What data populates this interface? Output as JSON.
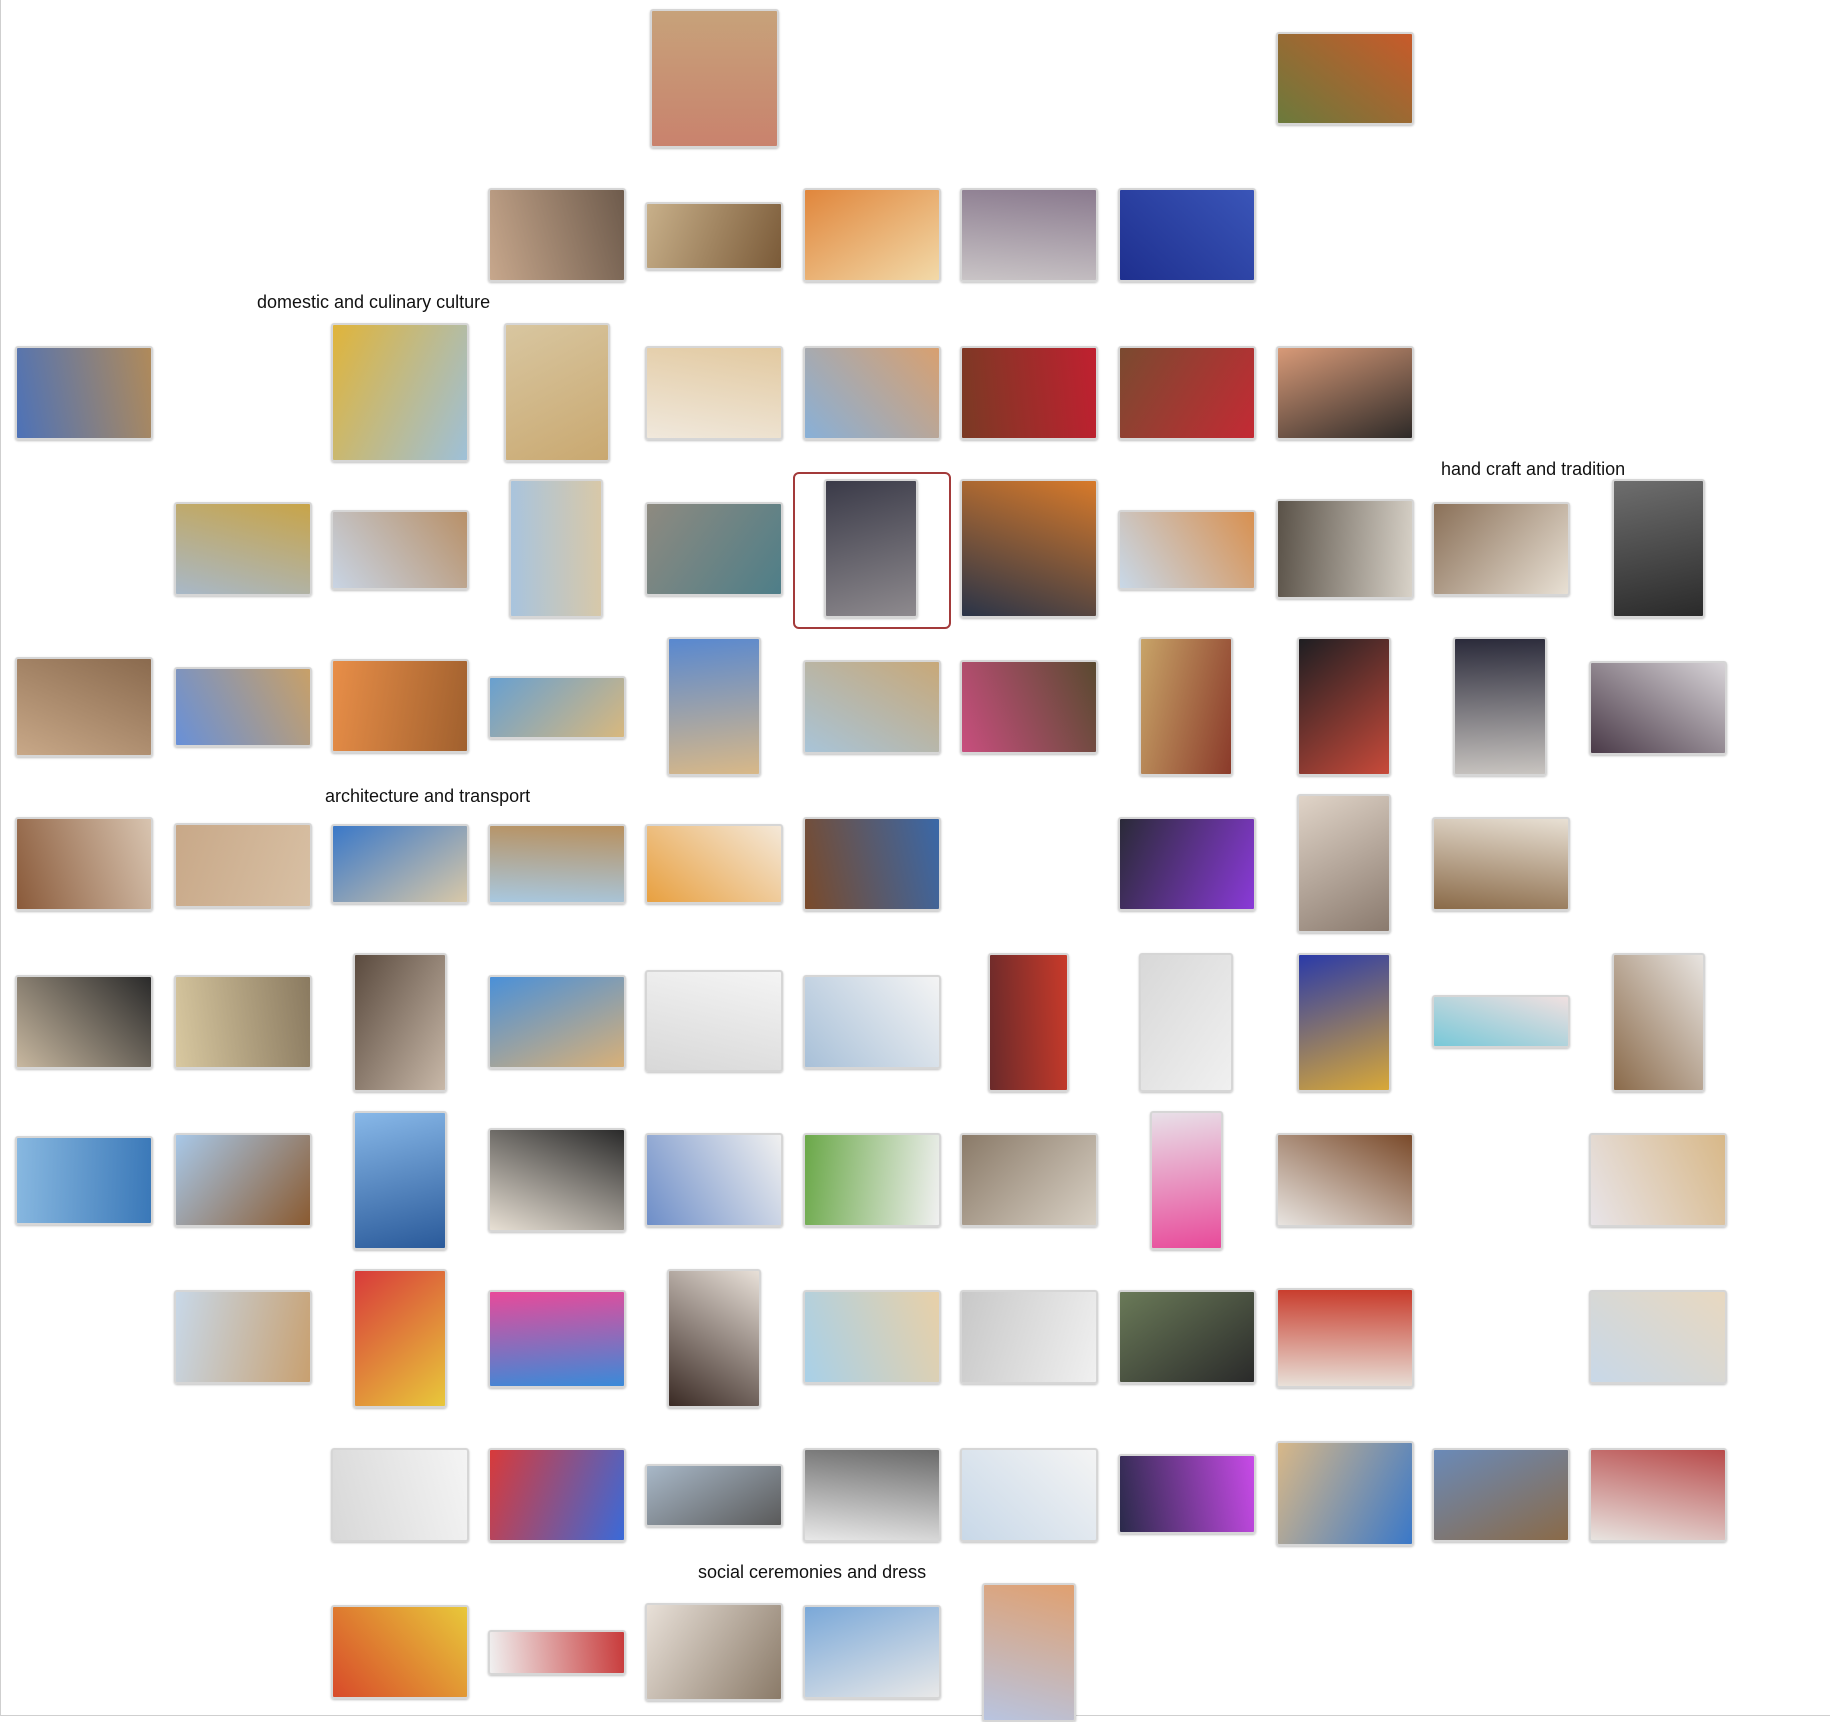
{
  "labels": [
    "domestic and culinary culture",
    "hand craft and tradition",
    "architecture and transport",
    "social ceremonies and dress"
  ],
  "selected_index": 38,
  "thumbnails": [
    {
      "name": "woven-palm-mat",
      "c1": "#c9826d",
      "c2": "#c7a27a"
    },
    {
      "name": "date-palm-harvest",
      "c1": "#6b7a3c",
      "c2": "#c85a2a"
    },
    {
      "name": "hands-oyster",
      "c1": "#c7a78c",
      "c2": "#6e5b4c"
    },
    {
      "name": "camel-race-crowd",
      "c1": "#c8b08a",
      "c2": "#7a5a38"
    },
    {
      "name": "tea-and-bread",
      "c1": "#e0863c",
      "c2": "#f2d9a8"
    },
    {
      "name": "braided-rope",
      "c1": "#c9c4c6",
      "c2": "#8a7a8e"
    },
    {
      "name": "henna-hands-blue",
      "c1": "#1e2f8e",
      "c2": "#3a55b8"
    },
    {
      "name": "camels-sky",
      "c1": "#4d72b8",
      "c2": "#b08a5a"
    },
    {
      "name": "saffron-rice",
      "c1": "#e0b43a",
      "c2": "#9ec0d8"
    },
    {
      "name": "hummus-plate",
      "c1": "#d8c6a0",
      "c2": "#c9a870"
    },
    {
      "name": "child-with-falcon",
      "c1": "#f0e8dc",
      "c2": "#e2c9a0"
    },
    {
      "name": "falcon-desert",
      "c1": "#88b0d8",
      "c2": "#d8a070"
    },
    {
      "name": "net-weaving-red",
      "c1": "#7a3a24",
      "c2": "#c02030"
    },
    {
      "name": "net-weaving-hands",
      "c1": "#7a4a30",
      "c2": "#c42a34"
    },
    {
      "name": "women-weaving",
      "c1": "#d89a78",
      "c2": "#2e2a28"
    },
    {
      "name": "mountain-fort",
      "c1": "#a8b8c8",
      "c2": "#c8a448"
    },
    {
      "name": "stone-tomb",
      "c1": "#c8d4e4",
      "c2": "#b89068"
    },
    {
      "name": "white-tower",
      "c1": "#a8c4de",
      "c2": "#d8c8a8"
    },
    {
      "name": "woven-baskets",
      "c1": "#8e8a80",
      "c2": "#4e7e88"
    },
    {
      "name": "coffee-dallah",
      "c1": "#3a3a48",
      "c2": "#8e8a8e"
    },
    {
      "name": "bride-gold-mask",
      "c1": "#2a3448",
      "c2": "#d87a2a"
    },
    {
      "name": "falconer-dunes",
      "c1": "#c8d8e8",
      "c2": "#d89050"
    },
    {
      "name": "loom-weaving",
      "c1": "#5a5248",
      "c2": "#d8d2c8"
    },
    {
      "name": "old-man-basket",
      "c1": "#8a7058",
      "c2": "#e8e0d4"
    },
    {
      "name": "woman-black-white",
      "c1": "#6e6e6e",
      "c2": "#2a2a2a"
    },
    {
      "name": "arched-door",
      "c1": "#c8a888",
      "c2": "#8a6a4e"
    },
    {
      "name": "fort-gate",
      "c1": "#6890d8",
      "c2": "#c8a068"
    },
    {
      "name": "fort-sunset",
      "c1": "#e88e48",
      "c2": "#a0602e"
    },
    {
      "name": "fort-sea",
      "c1": "#68a0d0",
      "c2": "#d8b87e"
    },
    {
      "name": "tall-fort",
      "c1": "#5888d0",
      "c2": "#d8b888"
    },
    {
      "name": "mud-house",
      "c1": "#a8c4d8",
      "c2": "#c8a878"
    },
    {
      "name": "colorful-baskets",
      "c1": "#c84e7e",
      "c2": "#5a4a30"
    },
    {
      "name": "musician-oud",
      "c1": "#c8a468",
      "c2": "#8a3a2a"
    },
    {
      "name": "dark-weaving",
      "c1": "#1e1e22",
      "c2": "#c84a3a"
    },
    {
      "name": "woman-weaving-rope",
      "c1": "#2a2a3a",
      "c2": "#c8c4c0"
    },
    {
      "name": "woman-purple-weaving",
      "c1": "#4a3a48",
      "c2": "#d8d4d8"
    },
    {
      "name": "camel-race-close",
      "c1": "#8a5a3a",
      "c2": "#d8c4b0"
    },
    {
      "name": "sand-fort-long",
      "c1": "#c8a888",
      "c2": "#d8c0a4"
    },
    {
      "name": "wind-tower-blue",
      "c1": "#3a78c8",
      "c2": "#d8c8a8"
    },
    {
      "name": "fort-palms",
      "c1": "#a8c8e0",
      "c2": "#b8905e"
    },
    {
      "name": "flat-bread",
      "c1": "#e8a040",
      "c2": "#f4e8d8"
    },
    {
      "name": "dhow-harbor",
      "c1": "#7a4a2a",
      "c2": "#3a68a8"
    },
    {
      "name": "purple-craft",
      "c1": "#2a2a38",
      "c2": "#8a3ad8"
    },
    {
      "name": "cane-doorway",
      "c1": "#e0d4c8",
      "c2": "#8a7a6e"
    },
    {
      "name": "man-tools",
      "c1": "#8a6a48",
      "c2": "#e8e0d4"
    },
    {
      "name": "cannon",
      "c1": "#c8b8a0",
      "c2": "#2a2a2a"
    },
    {
      "name": "dhow-sunset",
      "c1": "#d8c8a0",
      "c2": "#8a7a60"
    },
    {
      "name": "silver-dallah",
      "c1": "#5a4a3e",
      "c2": "#c8b8a8"
    },
    {
      "name": "sand-mosque",
      "c1": "#4a90d8",
      "c2": "#d8b078"
    },
    {
      "name": "city-dance",
      "c1": "#d8d8d8",
      "c2": "#f4f4f4"
    },
    {
      "name": "men-in-white",
      "c1": "#a8c0d8",
      "c2": "#f4f4f4"
    },
    {
      "name": "red-costume",
      "c1": "#6a2a2a",
      "c2": "#c83a2a"
    },
    {
      "name": "dance-street",
      "c1": "#d8d8d8",
      "c2": "#f0f0f0"
    },
    {
      "name": "bride-blue",
      "c1": "#2a3aa8",
      "c2": "#d8a838"
    },
    {
      "name": "woman-teal",
      "c1": "#78c8d8",
      "c2": "#f0e0e0"
    },
    {
      "name": "falcon-men",
      "c1": "#8a6a4a",
      "c2": "#e8e4e0"
    },
    {
      "name": "boats-sea",
      "c1": "#88b8e0",
      "c2": "#3a78b8"
    },
    {
      "name": "dhow-sails",
      "c1": "#a8c8e8",
      "c2": "#8a5a30"
    },
    {
      "name": "tall-dhow",
      "c1": "#88b8e8",
      "c2": "#2a5a9a"
    },
    {
      "name": "museum-figures",
      "c1": "#e8e0d4",
      "c2": "#2a2a2a"
    },
    {
      "name": "men-blue-robes",
      "c1": "#6e8ec8",
      "c2": "#f0f0f0"
    },
    {
      "name": "park-dance",
      "c1": "#6aa848",
      "c2": "#f0f0f0"
    },
    {
      "name": "weaving-loom",
      "c1": "#8a7a68",
      "c2": "#d8d0c4"
    },
    {
      "name": "girl-dress",
      "c1": "#e8e0e8",
      "c2": "#e84a9a"
    },
    {
      "name": "rope-hands",
      "c1": "#e8e4e0",
      "c2": "#7a4a2a"
    },
    {
      "name": "desert-walk",
      "c1": "#e8e4e8",
      "c2": "#d8b888"
    },
    {
      "name": "camel-track",
      "c1": "#c8d8e8",
      "c2": "#c8a070"
    },
    {
      "name": "colorful-fabrics",
      "c1": "#d83a3a",
      "c2": "#e8c83a"
    },
    {
      "name": "girls-hair-dance",
      "c1": "#e84a9a",
      "c2": "#3a8ad8"
    },
    {
      "name": "robe-display",
      "c1": "#3a2a24",
      "c2": "#e8e0d8"
    },
    {
      "name": "father-son-sand",
      "c1": "#a8d0e8",
      "c2": "#e8d0a8"
    },
    {
      "name": "drummers",
      "c1": "#c8c8c8",
      "c2": "#f0f0f0"
    },
    {
      "name": "falcon-palms",
      "c1": "#6a7a58",
      "c2": "#2a2a2a"
    },
    {
      "name": "coffee-pour",
      "c1": "#e8e0d8",
      "c2": "#c83a2a"
    },
    {
      "name": "falconer-sand",
      "c1": "#c8d8e8",
      "c2": "#e8d8c0"
    },
    {
      "name": "men-city",
      "c1": "#d8d8d8",
      "c2": "#f4f4f4"
    },
    {
      "name": "girls-red-dress",
      "c1": "#d83a3a",
      "c2": "#3a6ad8"
    },
    {
      "name": "boats-crowd",
      "c1": "#a8b8c8",
      "c2": "#5a5a5a"
    },
    {
      "name": "bw-men",
      "c1": "#e8e8e8",
      "c2": "#6a6a6a"
    },
    {
      "name": "city-men-white",
      "c1": "#c8d8e8",
      "c2": "#f4f4f4"
    },
    {
      "name": "color-strands",
      "c1": "#2a2a4a",
      "c2": "#c84ae8"
    },
    {
      "name": "frame-weaver",
      "c1": "#d8b888",
      "c2": "#3a78c8"
    },
    {
      "name": "workshop",
      "c1": "#6a8ab8",
      "c2": "#8a6a48"
    },
    {
      "name": "henna-loom",
      "c1": "#e8e4e0",
      "c2": "#b84a4a"
    },
    {
      "name": "market-dresses",
      "c1": "#d84a2a",
      "c2": "#e8c83a"
    },
    {
      "name": "line-dance",
      "c1": "#f0f0f0",
      "c2": "#c83a3a"
    },
    {
      "name": "stick-dance",
      "c1": "#e8e0d8",
      "c2": "#8a7a68"
    },
    {
      "name": "skyline-dance",
      "c1": "#7aa8d8",
      "c2": "#e8e8e8"
    },
    {
      "name": "dune-walker",
      "c1": "#b8c4e0",
      "c2": "#e0a070"
    }
  ]
}
